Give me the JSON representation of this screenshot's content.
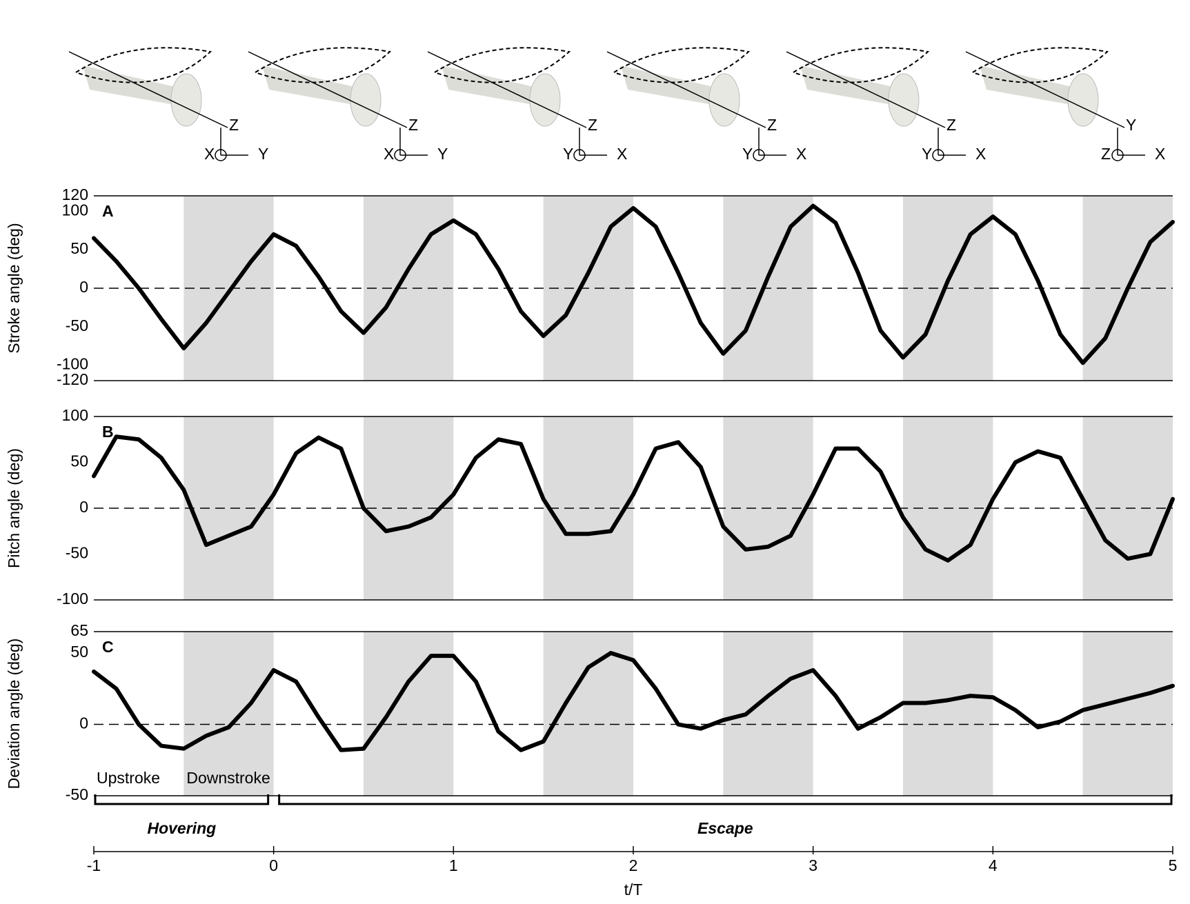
{
  "illustrations": [
    {
      "labels": [
        "Z",
        "X",
        "Y"
      ]
    },
    {
      "labels": [
        "Z",
        "X",
        "Y"
      ]
    },
    {
      "labels": [
        "Z",
        "Y",
        "X"
      ]
    },
    {
      "labels": [
        "Z",
        "Y",
        "X"
      ]
    },
    {
      "labels": [
        "Z",
        "Y",
        "X"
      ]
    },
    {
      "labels": [
        "Y",
        "Z",
        "X"
      ]
    }
  ],
  "chart_data": [
    {
      "type": "line",
      "label": "A",
      "ylabel": "Stroke angle (deg)",
      "xlim": [
        -1,
        5
      ],
      "ylim": [
        -120,
        120
      ],
      "yticks": [
        -120,
        -100,
        -50,
        0,
        50,
        100,
        120
      ],
      "shaded": [
        [
          -0.5,
          0
        ],
        [
          0.5,
          1
        ],
        [
          1.5,
          2
        ],
        [
          2.5,
          3
        ],
        [
          3.5,
          4
        ],
        [
          4.5,
          5
        ]
      ],
      "x": [
        -1,
        -0.875,
        -0.75,
        -0.625,
        -0.5,
        -0.375,
        -0.25,
        -0.125,
        0,
        0.125,
        0.25,
        0.375,
        0.5,
        0.625,
        0.75,
        0.875,
        1,
        1.125,
        1.25,
        1.375,
        1.5,
        1.625,
        1.75,
        1.875,
        2,
        2.125,
        2.25,
        2.375,
        2.5,
        2.625,
        2.75,
        2.875,
        3,
        3.125,
        3.25,
        3.375,
        3.5,
        3.625,
        3.75,
        3.875,
        4,
        4.125,
        4.25,
        4.375,
        4.5,
        4.625,
        4.75,
        4.875,
        5
      ],
      "series": [
        {
          "color": "#000000",
          "values": [
            65,
            35,
            0,
            -40,
            -78,
            -45,
            -5,
            35,
            70,
            55,
            15,
            -30,
            -58,
            -25,
            25,
            70,
            88,
            70,
            25,
            -30,
            -62,
            -35,
            20,
            80,
            104,
            80,
            20,
            -45,
            -85,
            -55,
            15,
            80,
            107,
            85,
            20,
            -55,
            -90,
            -60,
            10,
            70,
            93,
            70,
            10,
            -60,
            -97,
            -65,
            0,
            60,
            86
          ]
        }
      ]
    },
    {
      "type": "line",
      "label": "B",
      "ylabel": "Pitch angle (deg)",
      "xlim": [
        -1,
        5
      ],
      "ylim": [
        -100,
        100
      ],
      "yticks": [
        -100,
        -50,
        0,
        50,
        100
      ],
      "shaded": [
        [
          -0.5,
          0
        ],
        [
          0.5,
          1
        ],
        [
          1.5,
          2
        ],
        [
          2.5,
          3
        ],
        [
          3.5,
          4
        ],
        [
          4.5,
          5
        ]
      ],
      "x": [
        -1,
        -0.875,
        -0.75,
        -0.625,
        -0.5,
        -0.375,
        -0.25,
        -0.125,
        0,
        0.125,
        0.25,
        0.375,
        0.5,
        0.625,
        0.75,
        0.875,
        1,
        1.125,
        1.25,
        1.375,
        1.5,
        1.625,
        1.75,
        1.875,
        2,
        2.125,
        2.25,
        2.375,
        2.5,
        2.625,
        2.75,
        2.875,
        3,
        3.125,
        3.25,
        3.375,
        3.5,
        3.625,
        3.75,
        3.875,
        4,
        4.125,
        4.25,
        4.375,
        4.5,
        4.625,
        4.75,
        4.875,
        5
      ],
      "series": [
        {
          "color": "#000000",
          "values": [
            35,
            78,
            75,
            55,
            20,
            -40,
            -30,
            -20,
            15,
            60,
            77,
            65,
            0,
            -25,
            -20,
            -10,
            15,
            55,
            75,
            70,
            10,
            -28,
            -28,
            -25,
            15,
            65,
            72,
            45,
            -20,
            -45,
            -42,
            -30,
            15,
            65,
            65,
            40,
            -10,
            -45,
            -57,
            -40,
            10,
            50,
            62,
            55,
            10,
            -35,
            -55,
            -50,
            10
          ]
        }
      ]
    },
    {
      "type": "line",
      "label": "C",
      "ylabel": "Deviation angle (deg)",
      "xlabel": "t/T",
      "xlim": [
        -1,
        5
      ],
      "xticks": [
        -1,
        0,
        1,
        2,
        3,
        4,
        5
      ],
      "ylim": [
        -50,
        65
      ],
      "yticks": [
        -50,
        0,
        50,
        65
      ],
      "shaded": [
        [
          -0.5,
          0
        ],
        [
          0.5,
          1
        ],
        [
          1.5,
          2
        ],
        [
          2.5,
          3
        ],
        [
          3.5,
          4
        ],
        [
          4.5,
          5
        ]
      ],
      "annotations": [
        "Upstroke",
        "Downstroke"
      ],
      "phases": [
        {
          "label": "Hovering",
          "range": [
            -1,
            0
          ]
        },
        {
          "label": "Escape",
          "range": [
            0,
            5
          ]
        }
      ],
      "x": [
        -1,
        -0.875,
        -0.75,
        -0.625,
        -0.5,
        -0.375,
        -0.25,
        -0.125,
        0,
        0.125,
        0.25,
        0.375,
        0.5,
        0.625,
        0.75,
        0.875,
        1,
        1.125,
        1.25,
        1.375,
        1.5,
        1.625,
        1.75,
        1.875,
        2,
        2.125,
        2.25,
        2.375,
        2.5,
        2.625,
        2.75,
        2.875,
        3,
        3.125,
        3.25,
        3.375,
        3.5,
        3.625,
        3.75,
        3.875,
        4,
        4.125,
        4.25,
        4.375,
        4.5,
        4.625,
        4.75,
        4.875,
        5
      ],
      "series": [
        {
          "color": "#000000",
          "values": [
            37,
            25,
            0,
            -15,
            -17,
            -8,
            -2,
            15,
            38,
            30,
            5,
            -18,
            -17,
            5,
            30,
            48,
            48,
            30,
            -5,
            -18,
            -12,
            15,
            40,
            50,
            45,
            25,
            0,
            -3,
            3,
            7,
            20,
            32,
            38,
            20,
            -3,
            5,
            15,
            15,
            17,
            20,
            19,
            10,
            -2,
            2,
            10,
            14,
            18,
            22,
            27
          ]
        }
      ]
    }
  ]
}
